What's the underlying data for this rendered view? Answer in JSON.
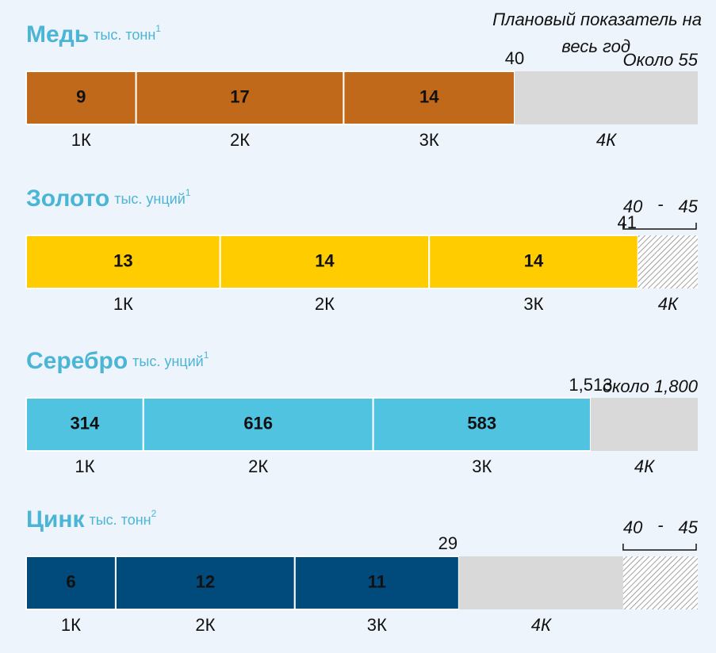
{
  "header_note": [
    "Плановый показатель на",
    "весь год"
  ],
  "chart_data": [
    {
      "type": "bar",
      "title": "Медь",
      "unit": "тыс. тонн",
      "footnote": "1",
      "categories": [
        "1К",
        "2К",
        "3К",
        "4К"
      ],
      "values": [
        9,
        17,
        14,
        null
      ],
      "color": "#c0691a",
      "label_color": "#ffffff",
      "total": 40,
      "target": 55,
      "target_label": "Около 55",
      "xlim": [
        0,
        55
      ]
    },
    {
      "type": "bar",
      "title": "Золото",
      "unit": "тыс. унций",
      "footnote": "1",
      "categories": [
        "1К",
        "2К",
        "3К",
        "4К"
      ],
      "values": [
        13,
        14,
        14,
        null
      ],
      "color": "#ffcc00",
      "label_color": "#1b4f7a",
      "total": 41,
      "target_range": [
        40,
        45
      ],
      "range_separator": "-",
      "xlim": [
        0,
        45
      ]
    },
    {
      "type": "bar",
      "title": "Серебро",
      "unit": "тыс. унций",
      "footnote": "1",
      "categories": [
        "1К",
        "2К",
        "3К",
        "4К"
      ],
      "values": [
        314,
        616,
        583,
        null
      ],
      "color": "#4fc3e0",
      "label_color": "#ffffff",
      "total": 1513,
      "total_label": "1,513",
      "target": 1800,
      "target_label": "около 1,800",
      "xlim": [
        0,
        1800
      ]
    },
    {
      "type": "bar",
      "title": "Цинк",
      "unit": "тыс. тонн",
      "footnote": "2",
      "categories": [
        "1К",
        "2К",
        "3К",
        "4К"
      ],
      "values": [
        6,
        12,
        11,
        null
      ],
      "color": "#004a7c",
      "label_color": "#ffffff",
      "total": 29,
      "target_range": [
        40,
        45
      ],
      "range_separator": "-",
      "xlim": [
        0,
        45
      ]
    }
  ]
}
